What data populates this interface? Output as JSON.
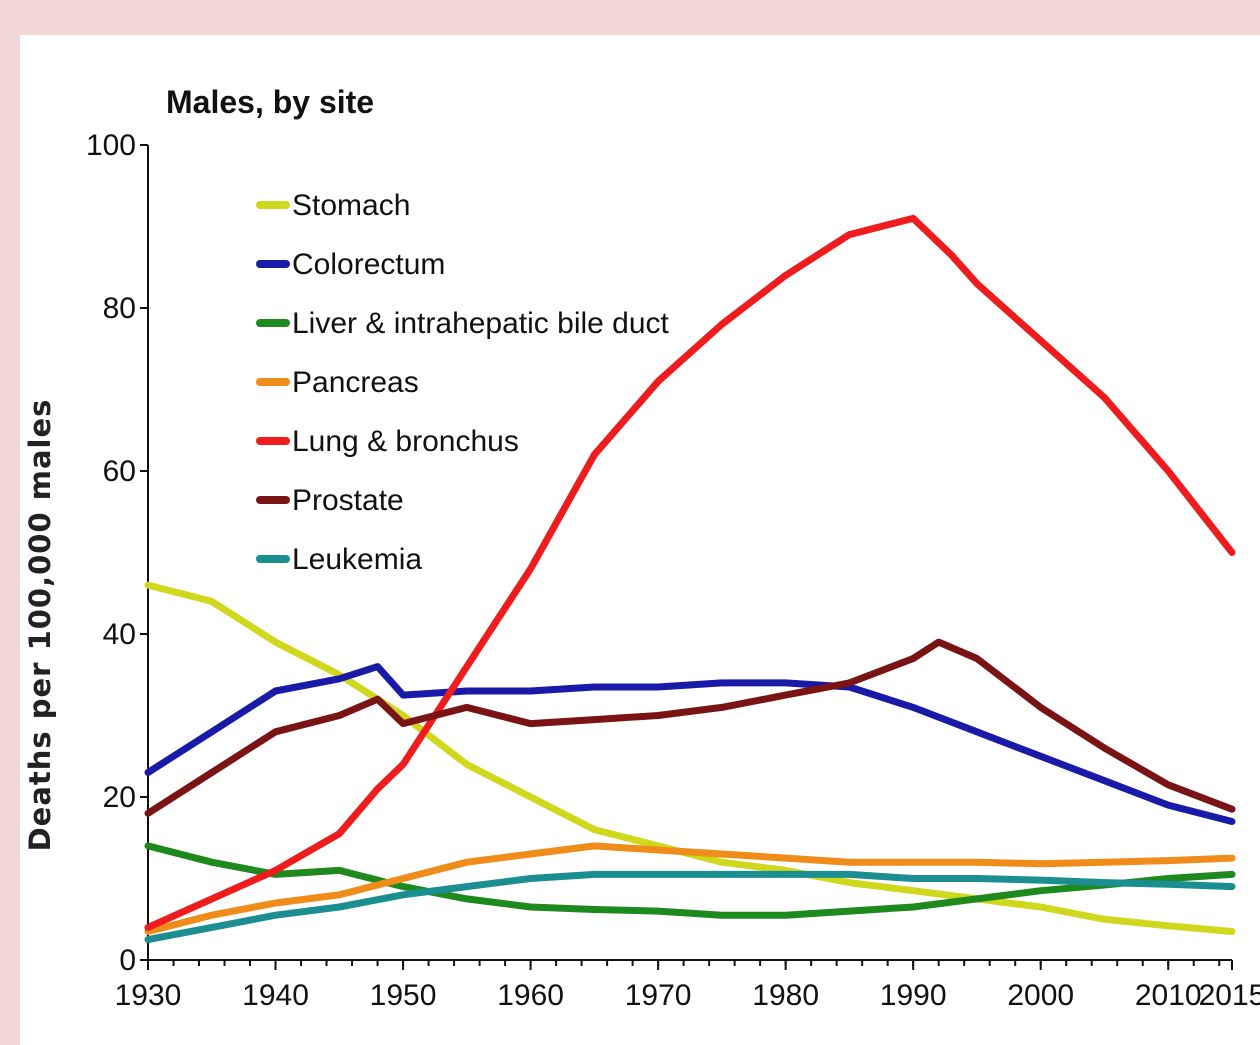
{
  "chart_data": {
    "type": "line",
    "title": "Males, by site",
    "ylabel": "Deaths per 100,000 males",
    "xlabel": "",
    "xlim": [
      1930,
      2015
    ],
    "ylim": [
      0,
      100
    ],
    "x_ticks": [
      1930,
      1940,
      1950,
      1960,
      1970,
      1980,
      1990,
      2000,
      2010,
      2015
    ],
    "y_ticks": [
      0,
      20,
      40,
      60,
      80,
      100
    ],
    "legend_position": "top-left",
    "series": [
      {
        "name": "Stomach",
        "color": "#cfd81c",
        "points": [
          [
            1930,
            46
          ],
          [
            1935,
            44
          ],
          [
            1940,
            39
          ],
          [
            1945,
            35
          ],
          [
            1948,
            32
          ],
          [
            1950,
            30
          ],
          [
            1955,
            24
          ],
          [
            1960,
            20
          ],
          [
            1965,
            16
          ],
          [
            1970,
            14
          ],
          [
            1975,
            12
          ],
          [
            1980,
            11
          ],
          [
            1985,
            9.5
          ],
          [
            1990,
            8.5
          ],
          [
            1995,
            7.5
          ],
          [
            2000,
            6.5
          ],
          [
            2005,
            5
          ],
          [
            2010,
            4.2
          ],
          [
            2015,
            3.5
          ]
        ]
      },
      {
        "name": "Colorectum",
        "color": "#1a1aa8",
        "points": [
          [
            1930,
            23
          ],
          [
            1935,
            28
          ],
          [
            1940,
            33
          ],
          [
            1945,
            34.5
          ],
          [
            1948,
            36
          ],
          [
            1950,
            32.5
          ],
          [
            1955,
            33
          ],
          [
            1960,
            33
          ],
          [
            1965,
            33.5
          ],
          [
            1970,
            33.5
          ],
          [
            1975,
            34
          ],
          [
            1980,
            34
          ],
          [
            1985,
            33.5
          ],
          [
            1990,
            31
          ],
          [
            1995,
            28
          ],
          [
            2000,
            25
          ],
          [
            2005,
            22
          ],
          [
            2010,
            19
          ],
          [
            2015,
            17
          ]
        ]
      },
      {
        "name": "Liver & intrahepatic bile duct",
        "color": "#1e8a1e",
        "points": [
          [
            1930,
            14
          ],
          [
            1935,
            12
          ],
          [
            1940,
            10.5
          ],
          [
            1945,
            11
          ],
          [
            1950,
            9
          ],
          [
            1955,
            7.5
          ],
          [
            1960,
            6.5
          ],
          [
            1965,
            6.2
          ],
          [
            1970,
            6
          ],
          [
            1975,
            5.5
          ],
          [
            1980,
            5.5
          ],
          [
            1985,
            6
          ],
          [
            1990,
            6.5
          ],
          [
            1995,
            7.5
          ],
          [
            2000,
            8.5
          ],
          [
            2005,
            9.2
          ],
          [
            2010,
            10
          ],
          [
            2015,
            10.5
          ]
        ]
      },
      {
        "name": "Pancreas",
        "color": "#f08c1a",
        "points": [
          [
            1930,
            3.5
          ],
          [
            1935,
            5.5
          ],
          [
            1940,
            7
          ],
          [
            1945,
            8
          ],
          [
            1950,
            10
          ],
          [
            1955,
            12
          ],
          [
            1960,
            13
          ],
          [
            1965,
            14
          ],
          [
            1970,
            13.5
          ],
          [
            1975,
            13
          ],
          [
            1980,
            12.5
          ],
          [
            1985,
            12
          ],
          [
            1990,
            12
          ],
          [
            1995,
            12
          ],
          [
            2000,
            11.8
          ],
          [
            2005,
            12
          ],
          [
            2010,
            12.2
          ],
          [
            2015,
            12.5
          ]
        ]
      },
      {
        "name": "Lung & bronchus",
        "color": "#ee1c1c",
        "points": [
          [
            1930,
            4
          ],
          [
            1935,
            7.5
          ],
          [
            1940,
            11
          ],
          [
            1945,
            15.5
          ],
          [
            1948,
            21
          ],
          [
            1950,
            24
          ],
          [
            1955,
            36
          ],
          [
            1960,
            48
          ],
          [
            1965,
            62
          ],
          [
            1970,
            71
          ],
          [
            1975,
            78
          ],
          [
            1980,
            84
          ],
          [
            1985,
            89
          ],
          [
            1990,
            91
          ],
          [
            1993,
            86.5
          ],
          [
            1995,
            83
          ],
          [
            2000,
            76
          ],
          [
            2005,
            69
          ],
          [
            2010,
            60
          ],
          [
            2015,
            50
          ]
        ]
      },
      {
        "name": "Prostate",
        "color": "#7a1414",
        "points": [
          [
            1930,
            18
          ],
          [
            1935,
            23
          ],
          [
            1940,
            28
          ],
          [
            1945,
            30
          ],
          [
            1948,
            32
          ],
          [
            1950,
            29
          ],
          [
            1955,
            31
          ],
          [
            1960,
            29
          ],
          [
            1965,
            29.5
          ],
          [
            1970,
            30
          ],
          [
            1975,
            31
          ],
          [
            1980,
            32.5
          ],
          [
            1985,
            34
          ],
          [
            1990,
            37
          ],
          [
            1992,
            39
          ],
          [
            1995,
            37
          ],
          [
            2000,
            31
          ],
          [
            2005,
            26
          ],
          [
            2010,
            21.5
          ],
          [
            2015,
            18.5
          ]
        ]
      },
      {
        "name": "Leukemia",
        "color": "#1b8e92",
        "points": [
          [
            1930,
            2.5
          ],
          [
            1935,
            4
          ],
          [
            1940,
            5.5
          ],
          [
            1945,
            6.5
          ],
          [
            1950,
            8
          ],
          [
            1955,
            9
          ],
          [
            1960,
            10
          ],
          [
            1965,
            10.5
          ],
          [
            1970,
            10.5
          ],
          [
            1975,
            10.5
          ],
          [
            1980,
            10.5
          ],
          [
            1985,
            10.5
          ],
          [
            1990,
            10
          ],
          [
            1995,
            10
          ],
          [
            2000,
            9.8
          ],
          [
            2005,
            9.5
          ],
          [
            2010,
            9.3
          ],
          [
            2015,
            9
          ]
        ]
      }
    ]
  }
}
